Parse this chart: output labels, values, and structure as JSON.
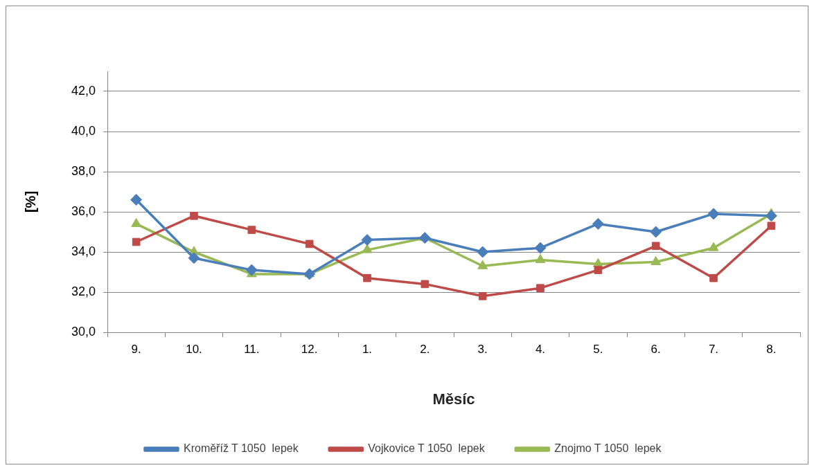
{
  "chart_data": {
    "type": "line",
    "xlabel": "Měsíc",
    "ylabel": "[%]",
    "categories": [
      "9.",
      "10.",
      "11.",
      "12.",
      "1.",
      "2.",
      "3.",
      "4.",
      "5.",
      "6.",
      "7.",
      "8."
    ],
    "series": [
      {
        "name": "Kroměříž T 1050  lepek",
        "color": "#4a7ebb",
        "marker": "diamond",
        "values": [
          36.6,
          33.7,
          33.1,
          32.9,
          34.6,
          34.7,
          34.0,
          34.2,
          35.4,
          35.0,
          35.9,
          35.8
        ]
      },
      {
        "name": "Vojkovice T 1050  lepek",
        "color": "#be4b48",
        "marker": "square",
        "values": [
          34.5,
          35.8,
          35.1,
          34.4,
          32.7,
          32.4,
          31.8,
          32.2,
          33.1,
          34.3,
          32.7,
          35.3
        ]
      },
      {
        "name": "Znojmo T 1050  lepek",
        "color": "#98b954",
        "marker": "triangle",
        "values": [
          35.4,
          34.0,
          32.9,
          32.9,
          34.1,
          34.7,
          33.3,
          33.6,
          33.4,
          33.5,
          34.2,
          35.9
        ]
      }
    ],
    "ylim": [
      30,
      43
    ],
    "yticks": [
      {
        "value": 30,
        "label": "30,0"
      },
      {
        "value": 32,
        "label": "32,0"
      },
      {
        "value": 34,
        "label": "34,0"
      },
      {
        "value": 36,
        "label": "36,0"
      },
      {
        "value": 38,
        "label": "38,0"
      },
      {
        "value": 40,
        "label": "40,0"
      },
      {
        "value": 42,
        "label": "42,0"
      }
    ],
    "grid": "y",
    "legend": "bottom"
  }
}
